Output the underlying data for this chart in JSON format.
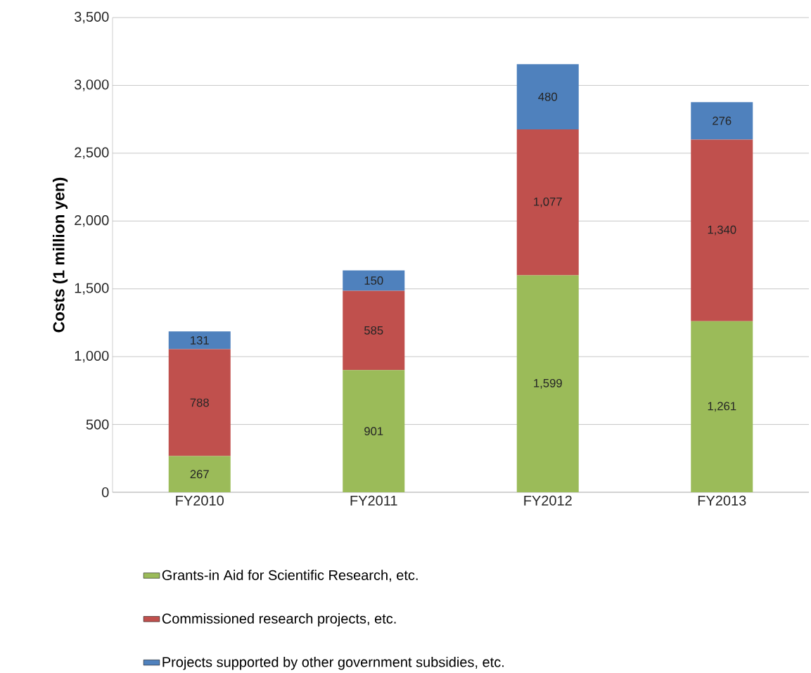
{
  "chart_data": {
    "type": "bar",
    "stacked": true,
    "ylabel": "Costs (1 million yen)",
    "categories": [
      "FY2010",
      "FY2011",
      "FY2012",
      "FY2013"
    ],
    "series": [
      {
        "name": "Grants-in Aid for Scientific Research, etc.",
        "color": "#9bbb59",
        "values": [
          267,
          901,
          1599,
          1261
        ],
        "value_labels": [
          "267",
          "901",
          "1,599",
          "1,261"
        ]
      },
      {
        "name": "Commissioned research projects, etc.",
        "color": "#c0504d",
        "values": [
          788,
          585,
          1077,
          1340
        ],
        "value_labels": [
          "788",
          "585",
          "1,077",
          "1,340"
        ]
      },
      {
        "name": "Projects supported by other government subsidies, etc.",
        "color": "#4f81bd",
        "values": [
          131,
          150,
          480,
          276
        ],
        "value_labels": [
          "131",
          "150",
          "480",
          "276"
        ]
      }
    ],
    "ylim": [
      0,
      3500
    ],
    "yticks": [
      0,
      500,
      {
        "value": 1000,
        "label": "1,000"
      },
      {
        "value": 1500,
        "label": "1,500"
      },
      {
        "value": 2000,
        "label": "2,000"
      },
      {
        "value": 2500,
        "label": "2,500"
      },
      {
        "value": 3000,
        "label": "3,000"
      },
      {
        "value": 3500,
        "label": "3,500"
      }
    ],
    "grid": "y",
    "legend": "bottom"
  }
}
